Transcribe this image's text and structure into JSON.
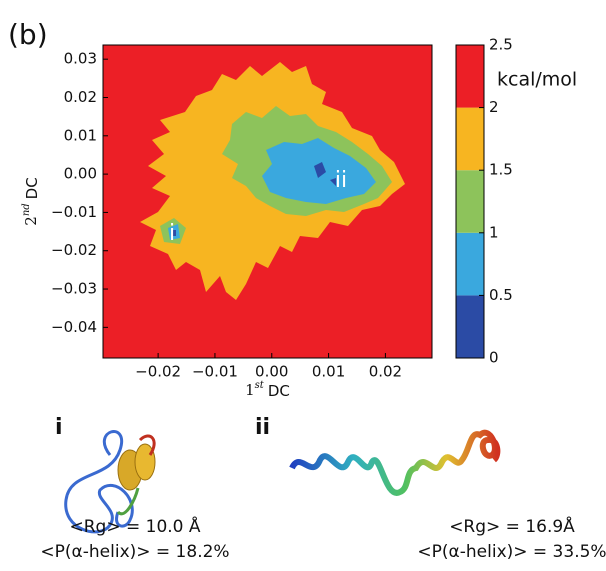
{
  "panel_label": "(b)",
  "chart_data": {
    "type": "contour",
    "xlabel": [
      "1",
      "st",
      "DC"
    ],
    "ylabel": [
      "2",
      "nd",
      "DC"
    ],
    "xlim": [
      -0.0297,
      0.0282
    ],
    "ylim": [
      -0.048,
      0.0337
    ],
    "xticks": [
      {
        "value": -0.02,
        "label": "−0.02"
      },
      {
        "value": -0.01,
        "label": "−0.01"
      },
      {
        "value": 0,
        "label": "0.00"
      },
      0.01,
      0.02
    ],
    "yticks": [
      {
        "value": -0.04,
        "label": "−0.04"
      },
      {
        "value": -0.03,
        "label": "−0.03"
      },
      {
        "value": -0.02,
        "label": "−0.02"
      },
      {
        "value": -0.01,
        "label": "−0.01"
      },
      {
        "value": 0,
        "label": "0.00"
      },
      0.01,
      0.02,
      0.03
    ],
    "annotations": [
      "i",
      "ii"
    ],
    "colorbar": {
      "label": "kcal/mol",
      "lim": [
        0,
        2.5
      ],
      "ticks": [
        0,
        0.5,
        1,
        1.5,
        2,
        2.5
      ],
      "colors": [
        "#2b4ba5",
        "#3aa8de",
        "#8dc35b",
        "#f7b521",
        "#ec1f26"
      ]
    }
  },
  "structures": [
    {
      "label": "i",
      "rg": "<Rg> = 10.0 Å",
      "helix": "<P(α-helix)> = 18.2%"
    },
    {
      "label": "ii",
      "rg": "<Rg> = 16.9Å",
      "helix": "<P(α-helix)> = 33.5%"
    }
  ]
}
